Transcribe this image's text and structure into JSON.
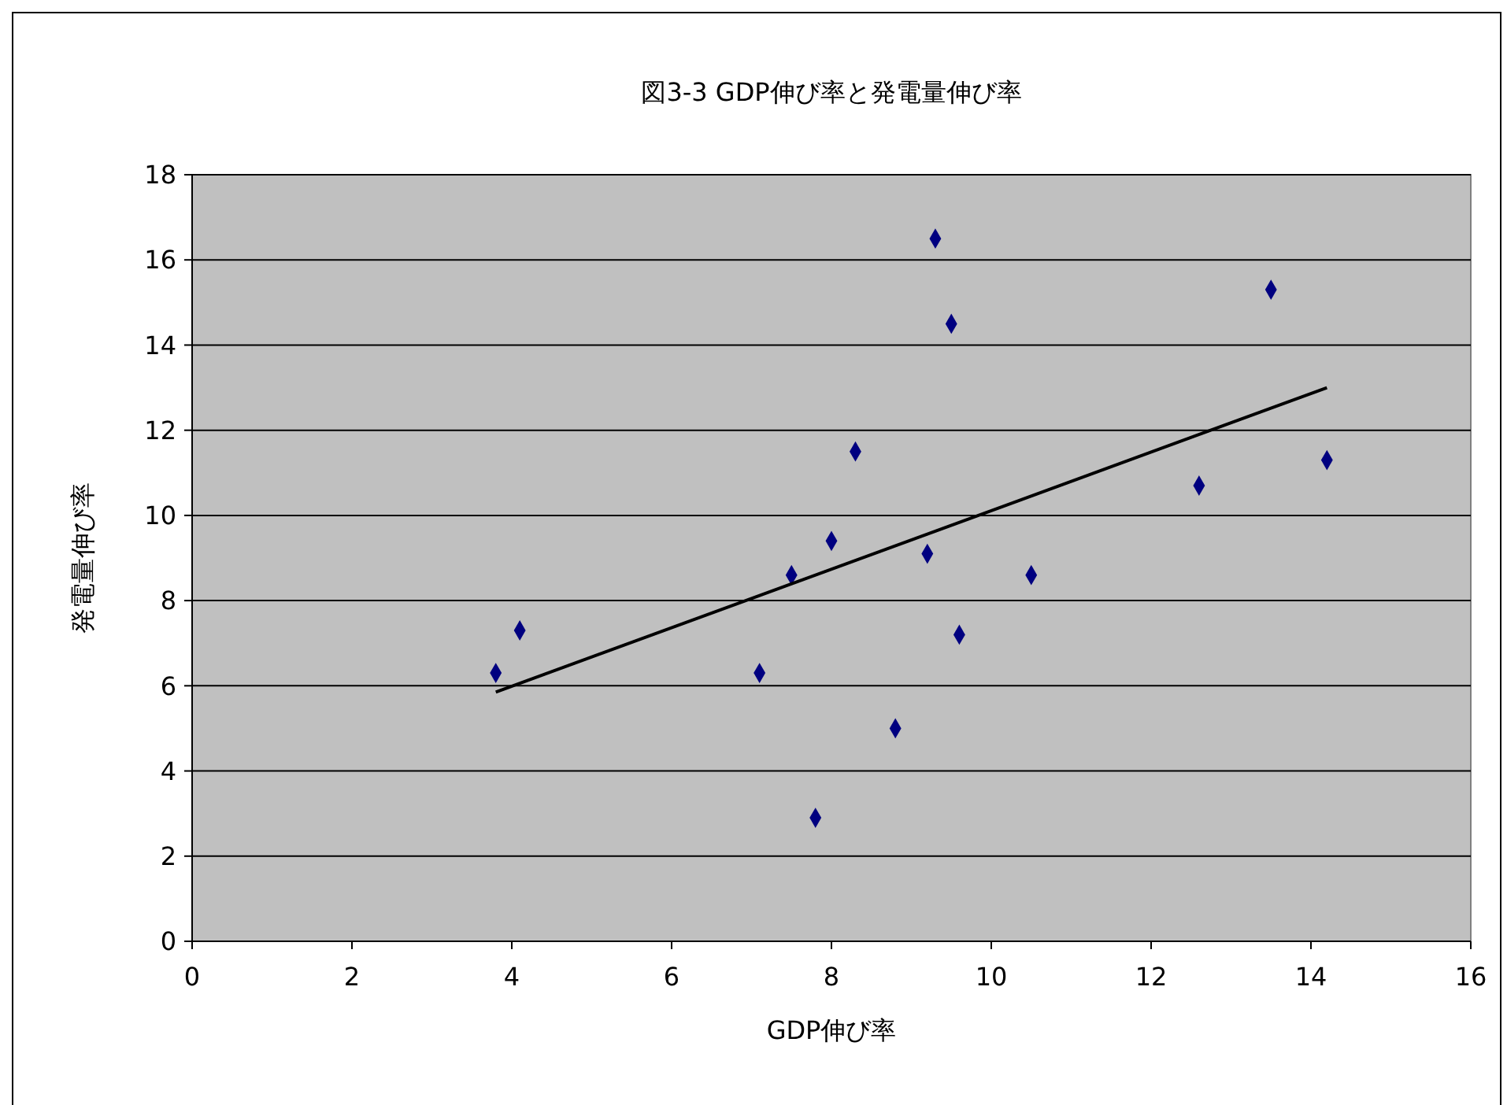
{
  "chart_data": {
    "type": "scatter",
    "title": "図3-3 GDP伸び率と発電量伸び率",
    "xlabel": "GDP伸び率",
    "ylabel": "発電量伸び率",
    "xlim": [
      0,
      16
    ],
    "xticks": [
      0,
      2,
      4,
      6,
      8,
      10,
      12,
      14,
      16
    ],
    "ylim": [
      0,
      18
    ],
    "yticks": [
      0,
      2,
      4,
      6,
      8,
      10,
      12,
      14,
      16,
      18
    ],
    "grid": "y",
    "marker": "diamond",
    "series": [
      {
        "color": "#000080",
        "x": [
          3.8,
          4.1,
          7.1,
          7.5,
          7.8,
          8.0,
          8.3,
          8.8,
          9.2,
          9.3,
          9.5,
          9.6,
          10.5,
          12.6,
          13.5,
          14.2
        ],
        "values": [
          6.3,
          7.3,
          6.3,
          8.6,
          2.9,
          9.4,
          11.5,
          5.0,
          9.1,
          16.5,
          14.5,
          7.2,
          8.6,
          10.7,
          15.3,
          11.3
        ]
      },
      {
        "type": "line",
        "color": "#000000",
        "marker": "none",
        "x": [
          3.8,
          14.2
        ],
        "values": [
          5.85,
          13.0
        ]
      }
    ]
  }
}
